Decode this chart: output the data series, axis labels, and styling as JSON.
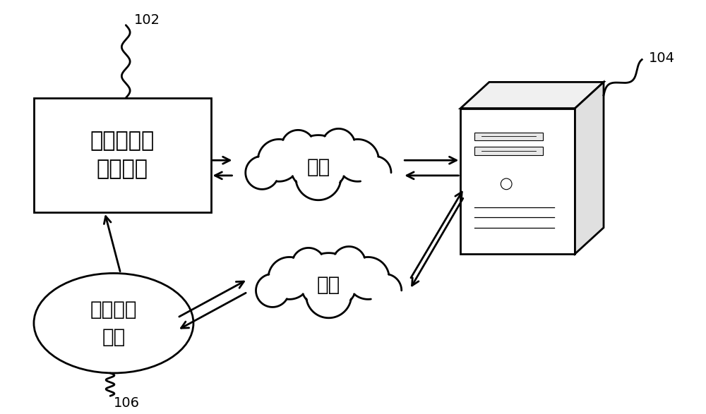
{
  "background_color": "#ffffff",
  "label_102": "102",
  "label_104": "104",
  "label_106": "106",
  "box_text": "待测电能表\n操作系统",
  "cloud1_text": "串口",
  "cloud2_text": "串口",
  "ellipse_text": "测试应用\n程序",
  "font_size_box": 22,
  "font_size_cloud": 20,
  "font_size_ellipse": 20,
  "font_size_label": 14,
  "line_color": "#000000",
  "fill_color": "#ffffff",
  "lw": 2.0
}
